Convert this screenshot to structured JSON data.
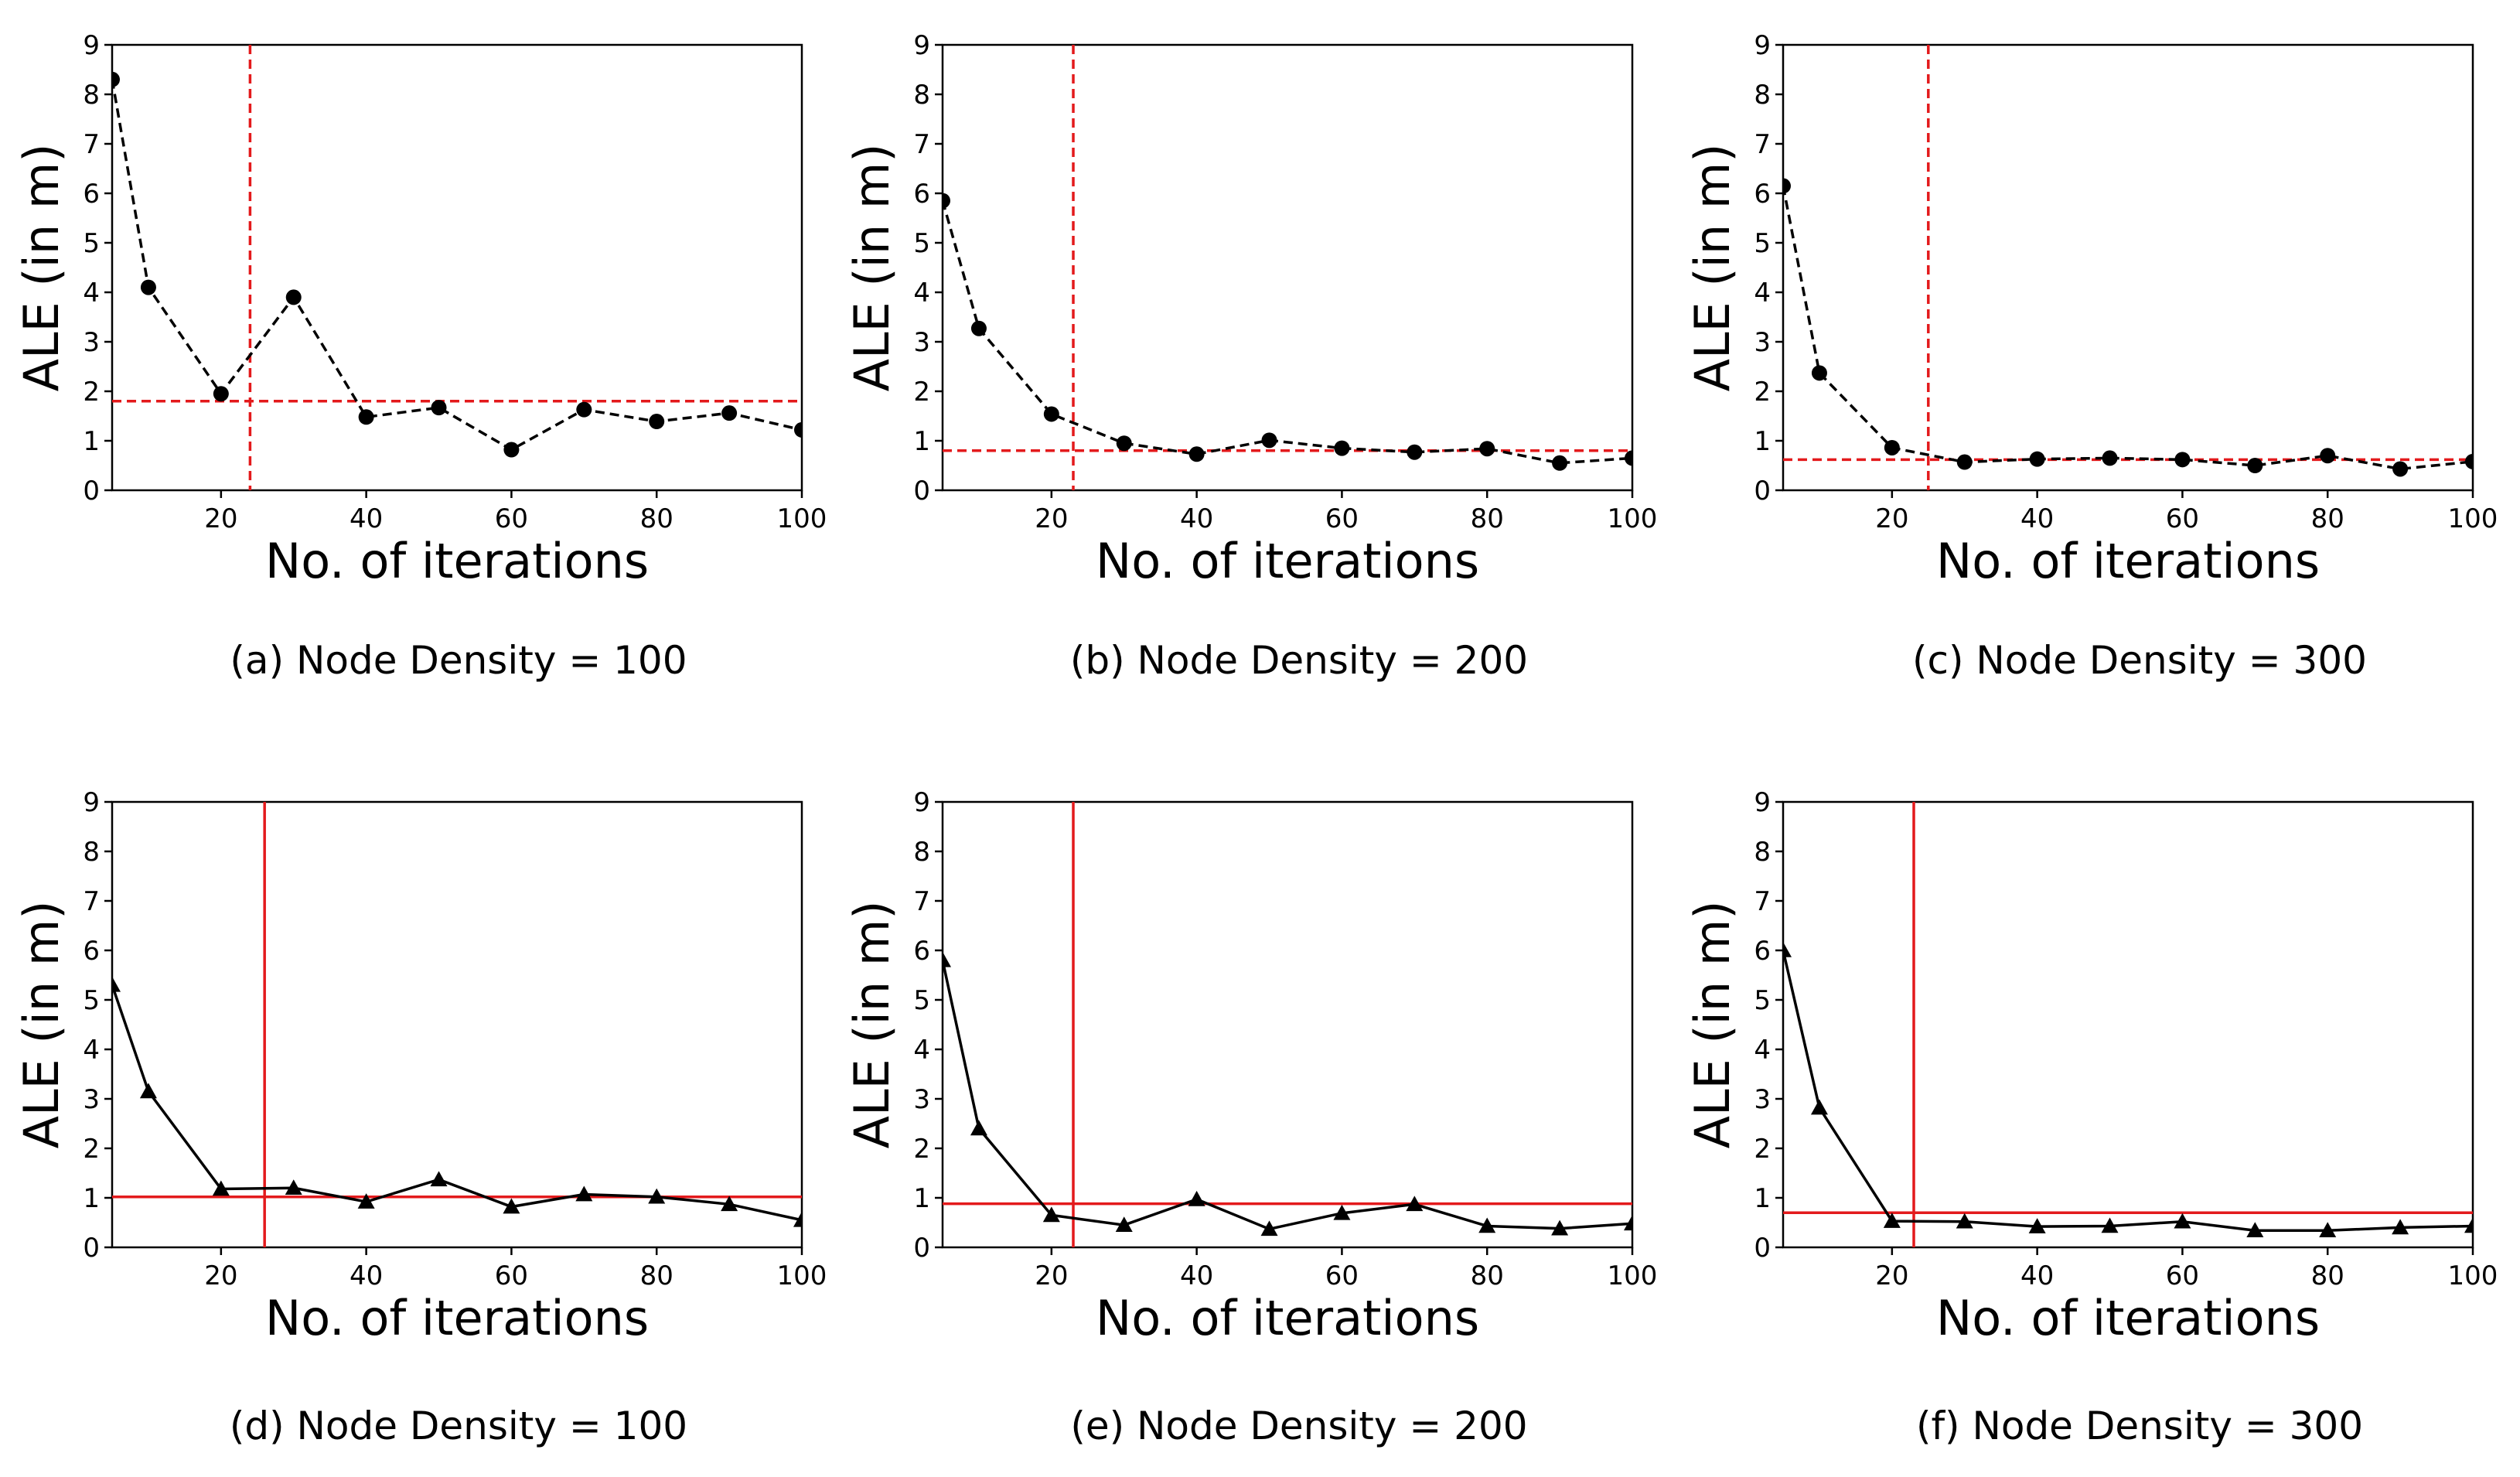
{
  "chart_data": [
    {
      "type": "line",
      "caption": "(a) Node Density = 100",
      "xlabel": "No. of iterations",
      "ylabel": "ALE (in m)",
      "xlim": [
        5,
        100
      ],
      "ylim": [
        0,
        9
      ],
      "xticks": [
        20,
        40,
        60,
        80,
        100
      ],
      "yticks": [
        0,
        1,
        2,
        3,
        4,
        5,
        6,
        7,
        8,
        9
      ],
      "marker": "circle",
      "line_style": "dashed",
      "ref_style": "dashed",
      "x": [
        5,
        10,
        20,
        30,
        40,
        50,
        60,
        70,
        80,
        90,
        100
      ],
      "y": [
        8.3,
        4.1,
        1.95,
        3.9,
        1.48,
        1.67,
        0.82,
        1.63,
        1.39,
        1.56,
        1.22
      ],
      "ref_x": 24,
      "ref_y": 1.8,
      "colors": {
        "series": "#000000",
        "reference": "#e31a1c"
      }
    },
    {
      "type": "line",
      "caption": "(b) Node Density = 200",
      "xlabel": "No. of iterations",
      "ylabel": "ALE (in m)",
      "xlim": [
        5,
        100
      ],
      "ylim": [
        0,
        9
      ],
      "xticks": [
        20,
        40,
        60,
        80,
        100
      ],
      "yticks": [
        0,
        1,
        2,
        3,
        4,
        5,
        6,
        7,
        8,
        9
      ],
      "marker": "circle",
      "line_style": "dashed",
      "ref_style": "dashed",
      "x": [
        5,
        10,
        20,
        30,
        40,
        50,
        60,
        70,
        80,
        90,
        100
      ],
      "y": [
        5.85,
        3.27,
        1.54,
        0.95,
        0.73,
        1.01,
        0.85,
        0.77,
        0.84,
        0.55,
        0.65
      ],
      "ref_x": 23,
      "ref_y": 0.8,
      "colors": {
        "series": "#000000",
        "reference": "#e31a1c"
      }
    },
    {
      "type": "line",
      "caption": "(c) Node Density = 300",
      "xlabel": "No. of iterations",
      "ylabel": "ALE (in m)",
      "xlim": [
        5,
        100
      ],
      "ylim": [
        0,
        9
      ],
      "xticks": [
        20,
        40,
        60,
        80,
        100
      ],
      "yticks": [
        0,
        1,
        2,
        3,
        4,
        5,
        6,
        7,
        8,
        9
      ],
      "marker": "circle",
      "line_style": "dashed",
      "ref_style": "dashed",
      "x": [
        5,
        10,
        20,
        30,
        40,
        50,
        60,
        70,
        80,
        90,
        100
      ],
      "y": [
        6.15,
        2.37,
        0.86,
        0.57,
        0.63,
        0.65,
        0.62,
        0.5,
        0.7,
        0.43,
        0.58
      ],
      "ref_x": 25,
      "ref_y": 0.62,
      "colors": {
        "series": "#000000",
        "reference": "#e31a1c"
      }
    },
    {
      "type": "line",
      "caption": "(d) Node Density = 100",
      "xlabel": "No. of iterations",
      "ylabel": "ALE (in m)",
      "xlim": [
        5,
        100
      ],
      "ylim": [
        0,
        9
      ],
      "xticks": [
        20,
        40,
        60,
        80,
        100
      ],
      "yticks": [
        0,
        1,
        2,
        3,
        4,
        5,
        6,
        7,
        8,
        9
      ],
      "marker": "triangle",
      "line_style": "solid",
      "ref_style": "solid",
      "x": [
        5,
        10,
        20,
        30,
        40,
        50,
        60,
        70,
        80,
        90,
        100
      ],
      "y": [
        5.3,
        3.15,
        1.18,
        1.2,
        0.92,
        1.37,
        0.82,
        1.07,
        1.02,
        0.87,
        0.55
      ],
      "ref_x": 26,
      "ref_y": 1.02,
      "colors": {
        "series": "#000000",
        "reference": "#e31a1c"
      }
    },
    {
      "type": "line",
      "caption": "(e) Node Density = 200",
      "xlabel": "No. of iterations",
      "ylabel": "ALE (in m)",
      "xlim": [
        5,
        100
      ],
      "ylim": [
        0,
        9
      ],
      "xticks": [
        20,
        40,
        60,
        80,
        100
      ],
      "yticks": [
        0,
        1,
        2,
        3,
        4,
        5,
        6,
        7,
        8,
        9
      ],
      "marker": "triangle",
      "line_style": "solid",
      "ref_style": "solid",
      "x": [
        5,
        10,
        20,
        30,
        40,
        50,
        60,
        70,
        80,
        90,
        100
      ],
      "y": [
        5.8,
        2.4,
        0.65,
        0.45,
        0.97,
        0.37,
        0.69,
        0.87,
        0.43,
        0.38,
        0.48
      ],
      "ref_x": 23,
      "ref_y": 0.88,
      "colors": {
        "series": "#000000",
        "reference": "#e31a1c"
      }
    },
    {
      "type": "line",
      "caption": "(f) Node Density = 300",
      "xlabel": "No. of iterations",
      "ylabel": "ALE (in m)",
      "xlim": [
        5,
        100
      ],
      "ylim": [
        0,
        9
      ],
      "xticks": [
        20,
        40,
        60,
        80,
        100
      ],
      "yticks": [
        0,
        1,
        2,
        3,
        4,
        5,
        6,
        7,
        8,
        9
      ],
      "marker": "triangle",
      "line_style": "solid",
      "ref_style": "solid",
      "x": [
        5,
        10,
        20,
        30,
        40,
        50,
        60,
        70,
        80,
        90,
        100
      ],
      "y": [
        6.0,
        2.82,
        0.53,
        0.52,
        0.42,
        0.43,
        0.52,
        0.34,
        0.34,
        0.4,
        0.43
      ],
      "ref_x": 23,
      "ref_y": 0.7,
      "colors": {
        "series": "#000000",
        "reference": "#e31a1c"
      }
    }
  ]
}
